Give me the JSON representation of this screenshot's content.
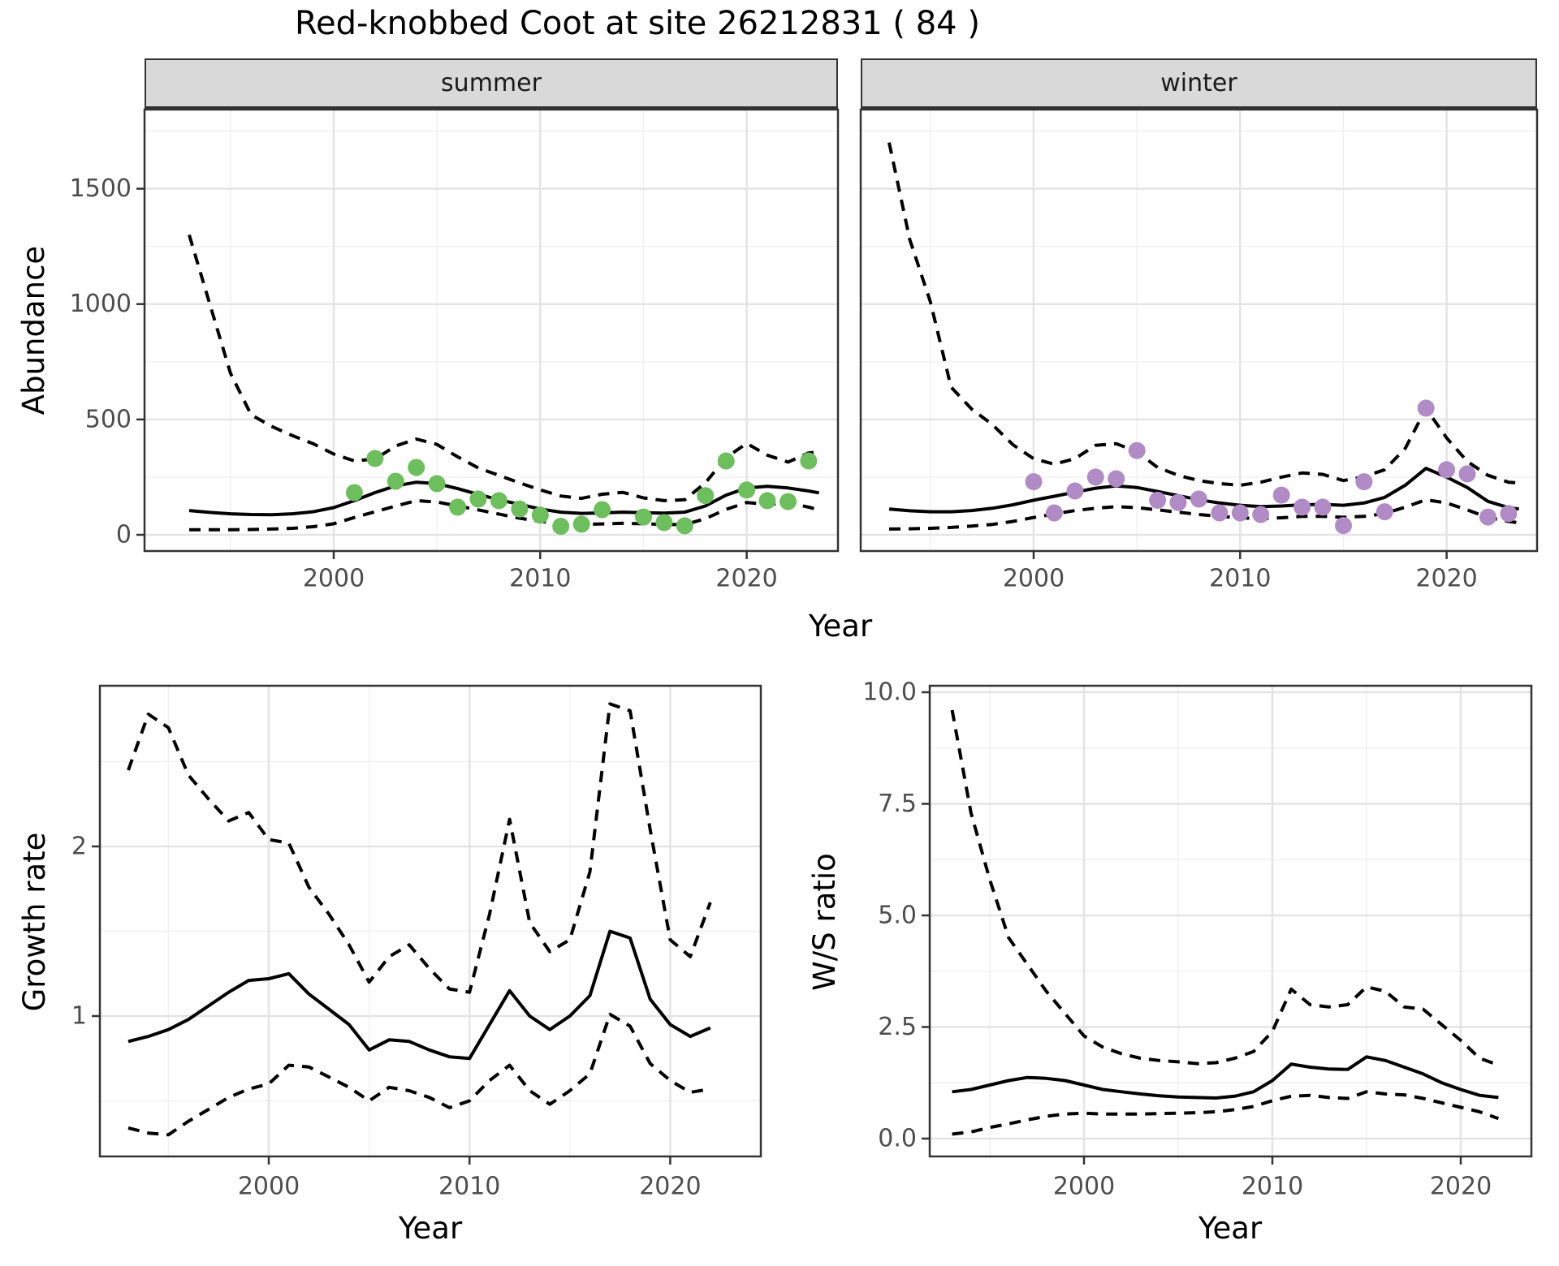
{
  "title": "Red-knobbed Coot at site 26212831 ( 84 )",
  "facets": {
    "summer_label": "summer",
    "winter_label": "winter"
  },
  "axis_titles": {
    "abundance": "Abundance",
    "year_top": "Year",
    "growth_rate": "Growth rate",
    "ws_ratio": "W/S ratio",
    "year_growth": "Year",
    "year_ws": "Year"
  },
  "colors": {
    "summer_point": "#6DBE5C",
    "winter_point": "#B18BC5",
    "line": "#000000",
    "strip_bg": "#d9d9d9",
    "grid_major": "#e4e4e4",
    "grid_minor": "#f0f0f0",
    "panel_border": "#333333",
    "tick_text": "#4d4d4d"
  },
  "chart_data": [
    {
      "id": "summer",
      "type": "line",
      "title": "summer",
      "xlabel": "Year",
      "ylabel": "Abundance",
      "xlim": [
        1991,
        2024.5
      ],
      "ylim": [
        -70,
        1845
      ],
      "x_axis": {
        "tick_values": [
          2000,
          2010,
          2020
        ],
        "tick_labels": [
          "2000",
          "2010",
          "2020"
        ],
        "minor_values": [
          1995,
          2005,
          2015
        ]
      },
      "y_axis": {
        "tick_values": [
          0,
          500,
          1000,
          1500
        ],
        "tick_labels": [
          "0",
          "500",
          "1000",
          "1500"
        ],
        "minor_values": [
          250,
          750,
          1250,
          1750
        ]
      },
      "years": [
        1993,
        1994,
        1995,
        1996,
        1997,
        1998,
        1999,
        2000,
        2001,
        2002,
        2003,
        2004,
        2005,
        2006,
        2007,
        2008,
        2009,
        2010,
        2011,
        2012,
        2013,
        2014,
        2015,
        2016,
        2017,
        2018,
        2019,
        2020,
        2021,
        2022,
        2023,
        2023.5
      ],
      "series": [
        {
          "name": "upper_ci",
          "style": "dashed",
          "values": [
            1300,
            1000,
            700,
            520,
            470,
            430,
            395,
            350,
            320,
            328,
            385,
            415,
            392,
            338,
            290,
            258,
            225,
            195,
            168,
            158,
            176,
            184,
            160,
            148,
            152,
            225,
            335,
            396,
            345,
            315,
            355,
            358
          ]
        },
        {
          "name": "lower_ci",
          "style": "dashed",
          "values": [
            22,
            22,
            22,
            23,
            25,
            28,
            35,
            48,
            75,
            100,
            125,
            148,
            142,
            125,
            108,
            90,
            72,
            58,
            48,
            45,
            47,
            50,
            48,
            45,
            44,
            70,
            110,
            140,
            132,
            138,
            120,
            108
          ]
        },
        {
          "name": "mean",
          "style": "solid",
          "values": [
            105,
            97,
            91,
            88,
            87,
            91,
            100,
            118,
            148,
            183,
            212,
            228,
            222,
            200,
            175,
            152,
            132,
            112,
            98,
            93,
            95,
            98,
            96,
            94,
            98,
            125,
            172,
            203,
            210,
            203,
            190,
            182
          ]
        }
      ],
      "points": {
        "name": "observed_counts",
        "color_key": "summer_point",
        "years": [
          2001,
          2002,
          2003,
          2004,
          2005,
          2006,
          2007,
          2008,
          2009,
          2010,
          2011,
          2012,
          2013,
          2015,
          2016,
          2017,
          2018,
          2019,
          2020,
          2021,
          2022,
          2023
        ],
        "values": [
          183,
          331,
          232,
          292,
          222,
          120,
          155,
          148,
          112,
          85,
          37,
          46,
          109,
          77,
          53,
          39,
          170,
          320,
          194,
          148,
          144,
          320
        ]
      }
    },
    {
      "id": "winter",
      "type": "line",
      "title": "winter",
      "xlabel": "Year",
      "ylabel": "",
      "xlim": [
        1991.6,
        2024.4
      ],
      "ylim": [
        -70,
        1845
      ],
      "x_axis": {
        "tick_values": [
          2000,
          2010,
          2020
        ],
        "tick_labels": [
          "2000",
          "2010",
          "2020"
        ],
        "minor_values": [
          1995,
          2005,
          2015
        ]
      },
      "y_axis": {
        "tick_values": [],
        "tick_labels": [],
        "minor_values": [
          250,
          750,
          1250,
          1750
        ],
        "grid_values": [
          0,
          500,
          1000,
          1500
        ]
      },
      "years": [
        1993,
        1994,
        1995,
        1996,
        1997,
        1998,
        1999,
        2000,
        2001,
        2002,
        2003,
        2004,
        2005,
        2006,
        2007,
        2008,
        2009,
        2010,
        2011,
        2012,
        2013,
        2014,
        2015,
        2016,
        2017,
        2018,
        2019,
        2020,
        2021,
        2022,
        2023,
        2023.5
      ],
      "series": [
        {
          "name": "upper_ci",
          "style": "dashed",
          "values": [
            1700,
            1280,
            1010,
            640,
            545,
            478,
            390,
            330,
            306,
            330,
            388,
            395,
            360,
            292,
            258,
            235,
            222,
            215,
            228,
            250,
            268,
            262,
            235,
            252,
            282,
            375,
            548,
            420,
            318,
            258,
            228,
            225
          ]
        },
        {
          "name": "lower_ci",
          "style": "dashed",
          "values": [
            25,
            26,
            28,
            32,
            38,
            45,
            58,
            75,
            90,
            105,
            115,
            122,
            118,
            108,
            98,
            88,
            80,
            74,
            70,
            74,
            80,
            80,
            76,
            80,
            92,
            120,
            152,
            138,
            108,
            75,
            58,
            52
          ]
        },
        {
          "name": "mean",
          "style": "solid",
          "values": [
            112,
            104,
            100,
            100,
            105,
            115,
            130,
            150,
            167,
            185,
            202,
            212,
            205,
            188,
            170,
            152,
            138,
            128,
            122,
            125,
            130,
            132,
            128,
            138,
            162,
            215,
            288,
            250,
            205,
            145,
            118,
            112
          ]
        }
      ],
      "points": {
        "name": "observed_counts",
        "color_key": "winter_point",
        "years": [
          2000,
          2001,
          2002,
          2003,
          2004,
          2005,
          2006,
          2007,
          2008,
          2009,
          2010,
          2011,
          2012,
          2013,
          2014,
          2015,
          2016,
          2017,
          2019,
          2020,
          2021,
          2022,
          2023
        ],
        "values": [
          230,
          95,
          190,
          250,
          243,
          365,
          150,
          140,
          155,
          95,
          95,
          88,
          172,
          120,
          120,
          40,
          230,
          100,
          549,
          282,
          264,
          77,
          92
        ]
      }
    },
    {
      "id": "growth",
      "type": "line",
      "title": "",
      "xlabel": "Year",
      "ylabel": "Growth rate",
      "xlim": [
        1991.6,
        2024.5
      ],
      "ylim": [
        0.17,
        2.95
      ],
      "x_axis": {
        "tick_values": [
          2000,
          2010,
          2020
        ],
        "tick_labels": [
          "2000",
          "2010",
          "2020"
        ],
        "minor_values": [
          1995,
          2005,
          2015
        ]
      },
      "y_axis": {
        "tick_values": [
          1,
          2
        ],
        "tick_labels": [
          "1",
          "2"
        ],
        "minor_values": [
          0.5,
          1.5,
          2.5
        ]
      },
      "years": [
        1993,
        1994,
        1995,
        1996,
        1997,
        1998,
        1999,
        2000,
        2001,
        2002,
        2003,
        2004,
        2005,
        2006,
        2007,
        2008,
        2009,
        2010,
        2011,
        2012,
        2013,
        2014,
        2015,
        2016,
        2017,
        2018,
        2019,
        2020,
        2021,
        2022
      ],
      "series": [
        {
          "name": "upper_ci",
          "style": "dashed",
          "values": [
            2.45,
            2.78,
            2.7,
            2.42,
            2.28,
            2.15,
            2.2,
            2.04,
            2.02,
            1.76,
            1.6,
            1.42,
            1.2,
            1.35,
            1.42,
            1.28,
            1.16,
            1.14,
            1.6,
            2.16,
            1.55,
            1.38,
            1.45,
            1.85,
            2.84,
            2.8,
            2.1,
            1.45,
            1.35,
            1.67
          ]
        },
        {
          "name": "lower_ci",
          "style": "dashed",
          "values": [
            0.34,
            0.31,
            0.3,
            0.38,
            0.45,
            0.52,
            0.57,
            0.6,
            0.71,
            0.7,
            0.64,
            0.58,
            0.5,
            0.58,
            0.56,
            0.52,
            0.46,
            0.5,
            0.62,
            0.71,
            0.56,
            0.48,
            0.56,
            0.66,
            1.01,
            0.94,
            0.72,
            0.62,
            0.55,
            0.57
          ]
        },
        {
          "name": "mean",
          "style": "solid",
          "values": [
            0.85,
            0.88,
            0.92,
            0.98,
            1.06,
            1.14,
            1.21,
            1.22,
            1.25,
            1.13,
            1.04,
            0.95,
            0.8,
            0.86,
            0.85,
            0.8,
            0.76,
            0.75,
            0.95,
            1.15,
            1.0,
            0.92,
            1.0,
            1.12,
            1.5,
            1.46,
            1.1,
            0.95,
            0.88,
            0.93
          ]
        }
      ],
      "points": null
    },
    {
      "id": "ws",
      "type": "line",
      "title": "",
      "xlabel": "Year",
      "ylabel": "W/S ratio",
      "xlim": [
        1991.8,
        2023.7
      ],
      "ylim": [
        -0.4,
        10.15
      ],
      "x_axis": {
        "tick_values": [
          2000,
          2010,
          2020
        ],
        "tick_labels": [
          "2000",
          "2010",
          "2020"
        ],
        "minor_values": [
          1995,
          2005,
          2015
        ]
      },
      "y_axis": {
        "tick_values": [
          0,
          2.5,
          5,
          7.5,
          10
        ],
        "tick_labels": [
          "0.0",
          "2.5",
          "5.0",
          "7.5",
          "10.0"
        ],
        "minor_values": [
          1.25,
          3.75,
          6.25,
          8.75
        ]
      },
      "years": [
        1993,
        1994,
        1995,
        1996,
        1997,
        1998,
        1999,
        2000,
        2001,
        2002,
        2003,
        2004,
        2005,
        2006,
        2007,
        2008,
        2009,
        2010,
        2011,
        2012,
        2013,
        2014,
        2015,
        2016,
        2017,
        2018,
        2019,
        2020,
        2021,
        2022
      ],
      "series": [
        {
          "name": "upper_ci",
          "style": "dashed",
          "values": [
            9.6,
            7.3,
            5.8,
            4.5,
            3.9,
            3.3,
            2.8,
            2.3,
            2.05,
            1.9,
            1.8,
            1.75,
            1.72,
            1.68,
            1.7,
            1.8,
            1.95,
            2.4,
            3.35,
            3.0,
            2.95,
            3.0,
            3.4,
            3.3,
            2.95,
            2.9,
            2.55,
            2.2,
            1.8,
            1.65
          ]
        },
        {
          "name": "lower_ci",
          "style": "dashed",
          "values": [
            0.1,
            0.15,
            0.25,
            0.33,
            0.42,
            0.5,
            0.55,
            0.57,
            0.55,
            0.55,
            0.55,
            0.56,
            0.57,
            0.58,
            0.6,
            0.65,
            0.72,
            0.85,
            0.95,
            0.97,
            0.92,
            0.9,
            1.05,
            1.0,
            0.98,
            0.9,
            0.8,
            0.7,
            0.6,
            0.45
          ]
        },
        {
          "name": "mean",
          "style": "solid",
          "values": [
            1.05,
            1.1,
            1.2,
            1.3,
            1.37,
            1.35,
            1.3,
            1.2,
            1.1,
            1.05,
            1.0,
            0.96,
            0.93,
            0.92,
            0.91,
            0.95,
            1.05,
            1.3,
            1.67,
            1.6,
            1.56,
            1.55,
            1.83,
            1.75,
            1.6,
            1.45,
            1.25,
            1.1,
            0.97,
            0.92
          ]
        }
      ],
      "points": null
    }
  ]
}
